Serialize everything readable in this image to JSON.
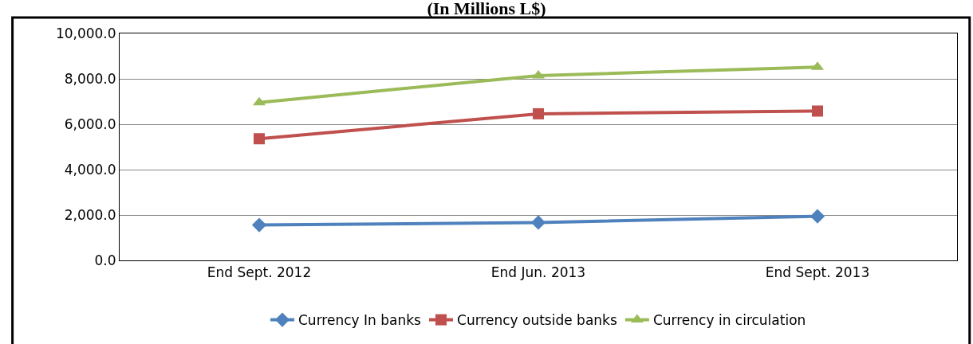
{
  "chart_data": {
    "type": "line",
    "title": "(In Millions L$)",
    "categories": [
      "End Sept. 2012",
      "End Jun. 2013",
      "End Sept. 2013"
    ],
    "series": [
      {
        "name": "Currency In banks",
        "color": "#4f81bd",
        "marker": "diamond",
        "values": [
          1560,
          1670,
          1940
        ]
      },
      {
        "name": "Currency outside banks",
        "color": "#c0504d",
        "marker": "square",
        "values": [
          5360,
          6460,
          6580
        ]
      },
      {
        "name": "Currency in circulation",
        "color": "#9bbb59",
        "marker": "triangle",
        "values": [
          6960,
          8140,
          8520
        ]
      }
    ],
    "ylim": [
      0,
      10000
    ],
    "yticks": [
      {
        "value": 0,
        "label": "0.0"
      },
      {
        "value": 2000,
        "label": "2,000.0"
      },
      {
        "value": 4000,
        "label": "4,000.0"
      },
      {
        "value": 6000,
        "label": "6,000.0"
      },
      {
        "value": 8000,
        "label": "8,000.0"
      },
      {
        "value": 10000,
        "label": "10,000.0"
      }
    ],
    "grid": "y",
    "legend": "bottom",
    "line_style": "solid"
  }
}
